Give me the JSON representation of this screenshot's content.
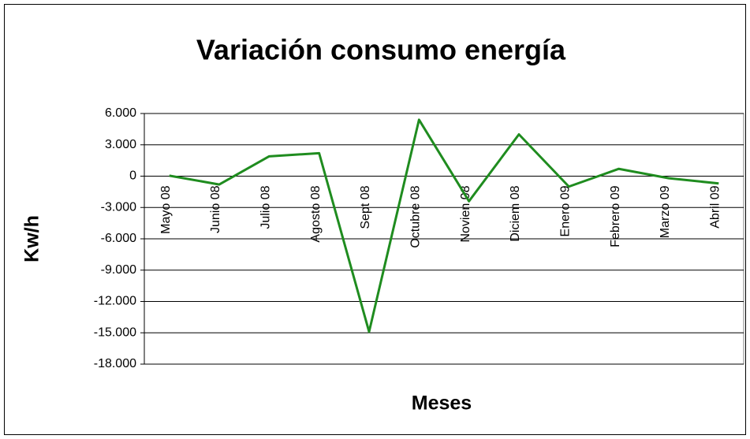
{
  "chart_data": {
    "type": "line",
    "title": "Variación consumo energía",
    "x_label": "Meses",
    "y_label": "Kw/h",
    "categories": [
      "Mayo 08",
      "Junio 08",
      "Julio 08",
      "Agosto 08",
      "Sept 08",
      "Octubre 08",
      "Novien 08",
      "Diciem 08",
      "Enero 09",
      "Febrero 09",
      "Marzo 09",
      "Abril 09"
    ],
    "values": [
      50,
      -800,
      1900,
      2200,
      -14900,
      5400,
      -2400,
      4000,
      -1000,
      700,
      -200,
      -700
    ],
    "color": "#1f8c1f",
    "ylim": [
      -18000,
      6000
    ],
    "yticks": [
      {
        "value": 6000,
        "label": "6.000"
      },
      {
        "value": 3000,
        "label": "3.000"
      },
      0,
      {
        "value": -3000,
        "label": "-3.000"
      },
      {
        "value": -6000,
        "label": "-6.000"
      },
      {
        "value": -9000,
        "label": "-9.000"
      },
      {
        "value": -12000,
        "label": "-12.000"
      },
      {
        "value": -15000,
        "label": "-15.000"
      },
      {
        "value": -18000,
        "label": "-18.000"
      }
    ],
    "grid": true
  }
}
